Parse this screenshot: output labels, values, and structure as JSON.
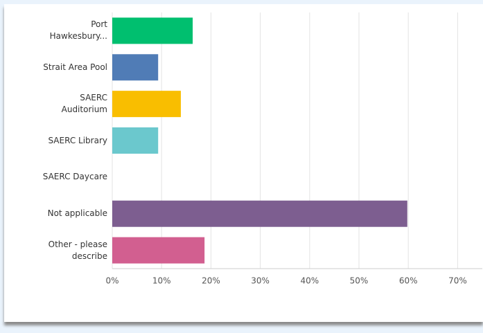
{
  "chart_data": {
    "type": "bar",
    "orientation": "horizontal",
    "categories": [
      "Port Hawkesbury...",
      "Strait Area Pool",
      "SAERC Auditorium",
      "SAERC Library",
      "SAERC Daycare",
      "Not applicable",
      "Other - please describe"
    ],
    "values": [
      16.3,
      9.3,
      13.9,
      9.3,
      0,
      59.8,
      18.7
    ],
    "colors": [
      "#00bf6f",
      "#507cb6",
      "#f9be00",
      "#6bc8cd",
      "#9d6bb0",
      "#7d5e90",
      "#d25f90"
    ],
    "xlim": [
      0,
      75
    ],
    "xticks": [
      {
        "value": 0,
        "label": "0%"
      },
      {
        "value": 10,
        "label": "10%"
      },
      {
        "value": 20,
        "label": "20%"
      },
      {
        "value": 30,
        "label": "30%"
      },
      {
        "value": 40,
        "label": "40%"
      },
      {
        "value": 50,
        "label": "50%"
      },
      {
        "value": 60,
        "label": "60%"
      },
      {
        "value": 70,
        "label": "70%"
      }
    ],
    "grid": true
  }
}
